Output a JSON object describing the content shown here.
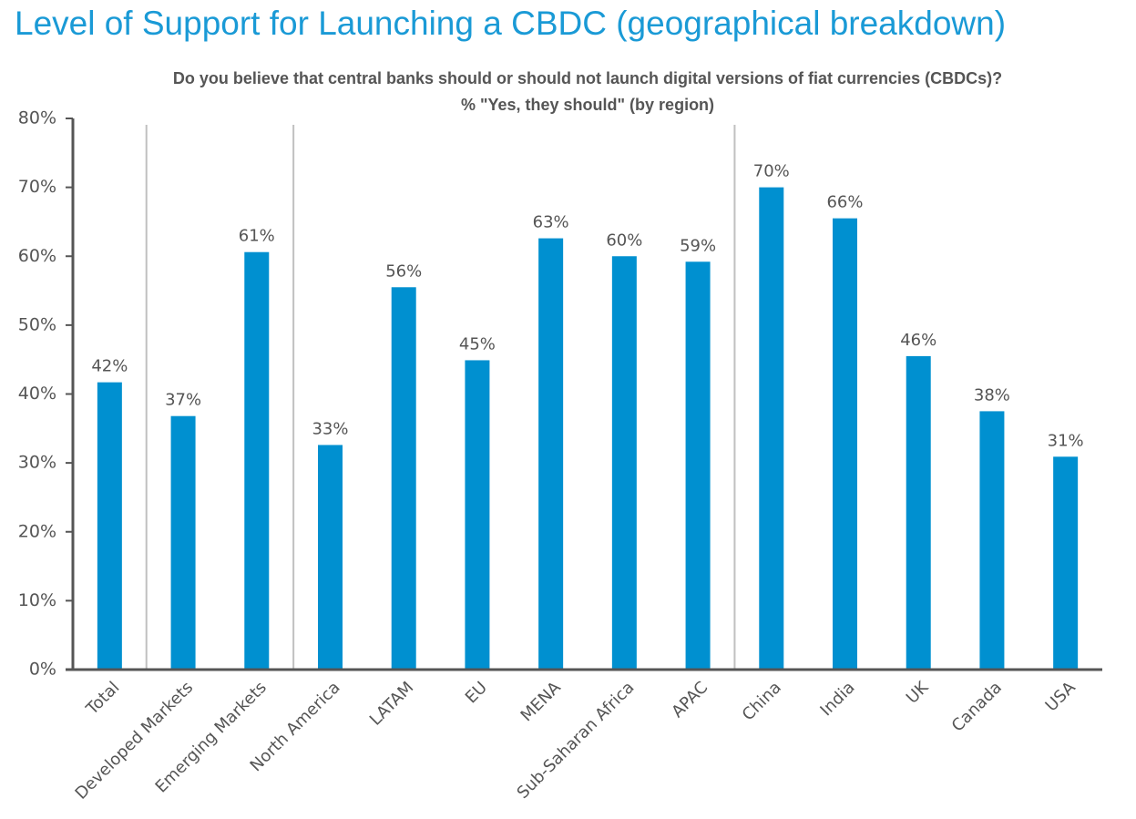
{
  "chart_data": {
    "type": "bar",
    "title": "Level of Support for Launching a CBDC (geographical breakdown)",
    "subtitle": [
      "Do you believe that central banks should or should not launch digital versions of fiat currencies (CBDCs)?",
      "% \"Yes, they should\" (by region)"
    ],
    "categories": [
      "Total",
      "Developed Markets",
      "Emerging Markets",
      "North America",
      "LATAM",
      "EU",
      "MENA",
      "Sub-Saharan Africa",
      "APAC",
      "China",
      "India",
      "UK",
      "Canada",
      "USA"
    ],
    "values": [
      41.7,
      36.8,
      60.6,
      32.6,
      55.5,
      44.9,
      62.6,
      60,
      59.2,
      70,
      65.5,
      45.5,
      37.5,
      30.9
    ],
    "value_labels": [
      "42%",
      "37%",
      "61%",
      "33%",
      "56%",
      "45%",
      "63%",
      "60%",
      "59%",
      "70%",
      "66%",
      "46%",
      "38%",
      "31%"
    ],
    "color": "#0090d0",
    "ylim": [
      0,
      80
    ],
    "yticks": [
      {
        "value": 0,
        "label": "0%"
      },
      {
        "value": 10,
        "label": "10%"
      },
      {
        "value": 20,
        "label": "20%"
      },
      {
        "value": 30,
        "label": "30%"
      },
      {
        "value": 40,
        "label": "40%"
      },
      {
        "value": 50,
        "label": "50%"
      },
      {
        "value": 60,
        "label": "60%"
      },
      {
        "value": 70,
        "label": "70%"
      },
      {
        "value": 80,
        "label": "80%"
      }
    ],
    "grid": false
  }
}
